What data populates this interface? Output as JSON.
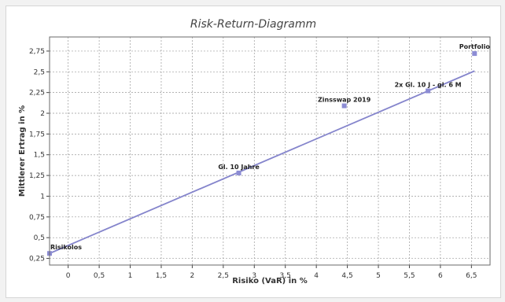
{
  "colors": {
    "line": "#8585cc",
    "marker": "#8c8cd4",
    "grid": "#9a9a9a",
    "plot_border": "#6a6a6a"
  },
  "chart_data": {
    "type": "scatter",
    "title": "Risk-Return-Diagramm",
    "xlabel": "Risiko (VaR) in %",
    "ylabel": "Mittlerer Ertrag in %",
    "xlim": [
      -0.3,
      6.8
    ],
    "ylim": [
      0.17,
      2.92
    ],
    "x_ticks": [
      {
        "value": 0,
        "label": "0"
      },
      {
        "value": 0.5,
        "label": "0,5"
      },
      {
        "value": 1,
        "label": "1"
      },
      {
        "value": 1.5,
        "label": "1,5"
      },
      {
        "value": 2,
        "label": "2"
      },
      {
        "value": 2.5,
        "label": "2,5"
      },
      {
        "value": 3,
        "label": "3"
      },
      {
        "value": 3.5,
        "label": "3,5"
      },
      {
        "value": 4,
        "label": "4"
      },
      {
        "value": 4.5,
        "label": "4,5"
      },
      {
        "value": 5,
        "label": "5"
      },
      {
        "value": 5.5,
        "label": "5,5"
      },
      {
        "value": 6,
        "label": "6"
      },
      {
        "value": 6.5,
        "label": "6,5"
      }
    ],
    "y_ticks": [
      {
        "value": 0.25,
        "label": "0,25"
      },
      {
        "value": 0.5,
        "label": "0,5"
      },
      {
        "value": 0.75,
        "label": "0,75"
      },
      {
        "value": 1,
        "label": "1"
      },
      {
        "value": 1.25,
        "label": "1,25"
      },
      {
        "value": 1.5,
        "label": "1,5"
      },
      {
        "value": 1.75,
        "label": "1,75"
      },
      {
        "value": 2,
        "label": "2"
      },
      {
        "value": 2.25,
        "label": "2,25"
      },
      {
        "value": 2.5,
        "label": "2,5"
      },
      {
        "value": 2.75,
        "label": "2,75"
      }
    ],
    "grid": true,
    "points": [
      {
        "label": "Risikolos",
        "x": -0.3,
        "y": 0.31
      },
      {
        "label": "Gl. 10 Jahre",
        "x": 2.75,
        "y": 1.28
      },
      {
        "label": "Zinsswap 2019",
        "x": 4.45,
        "y": 2.09
      },
      {
        "label": "2x Gl. 10 J - gl. 6 M",
        "x": 5.8,
        "y": 2.27
      },
      {
        "label": "Portfolio",
        "x": 6.55,
        "y": 2.72
      }
    ],
    "line": {
      "x": [
        -0.3,
        6.55
      ],
      "y": [
        0.31,
        2.51
      ]
    }
  }
}
